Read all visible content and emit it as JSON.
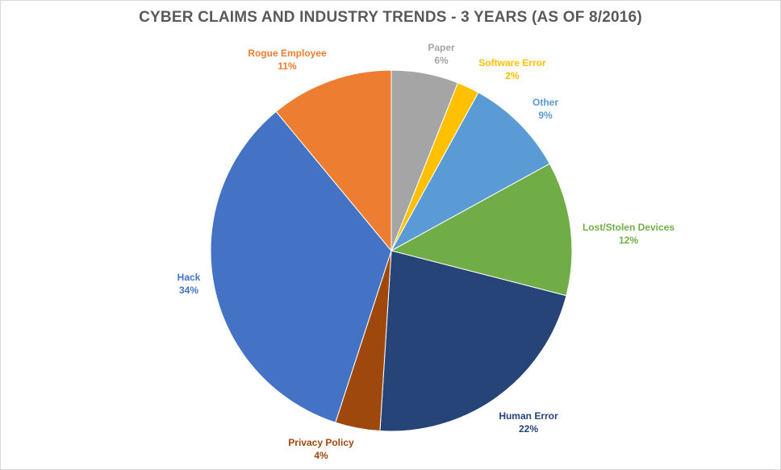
{
  "chart_data": {
    "type": "pie",
    "title": "CYBER CLAIMS AND INDUSTRY TRENDS - 3 YEARS (AS OF 8/2016)",
    "slices": [
      {
        "name": "Paper",
        "value": 6,
        "label": "6%",
        "color": "#a5a5a5"
      },
      {
        "name": "Software Error",
        "value": 2,
        "label": "2%",
        "color": "#ffc000"
      },
      {
        "name": "Other",
        "value": 9,
        "label": "9%",
        "color": "#5b9bd5"
      },
      {
        "name": "Lost/Stolen Devices",
        "value": 12,
        "label": "12%",
        "color": "#70ad47"
      },
      {
        "name": "Human Error",
        "value": 22,
        "label": "22%",
        "color": "#264478"
      },
      {
        "name": "Privacy Policy",
        "value": 4,
        "label": "4%",
        "color": "#9e480e"
      },
      {
        "name": "Hack",
        "value": 34,
        "label": "34%",
        "color": "#4472c4"
      },
      {
        "name": "Rogue Employee",
        "value": 11,
        "label": "11%",
        "color": "#ed7d31"
      }
    ]
  }
}
